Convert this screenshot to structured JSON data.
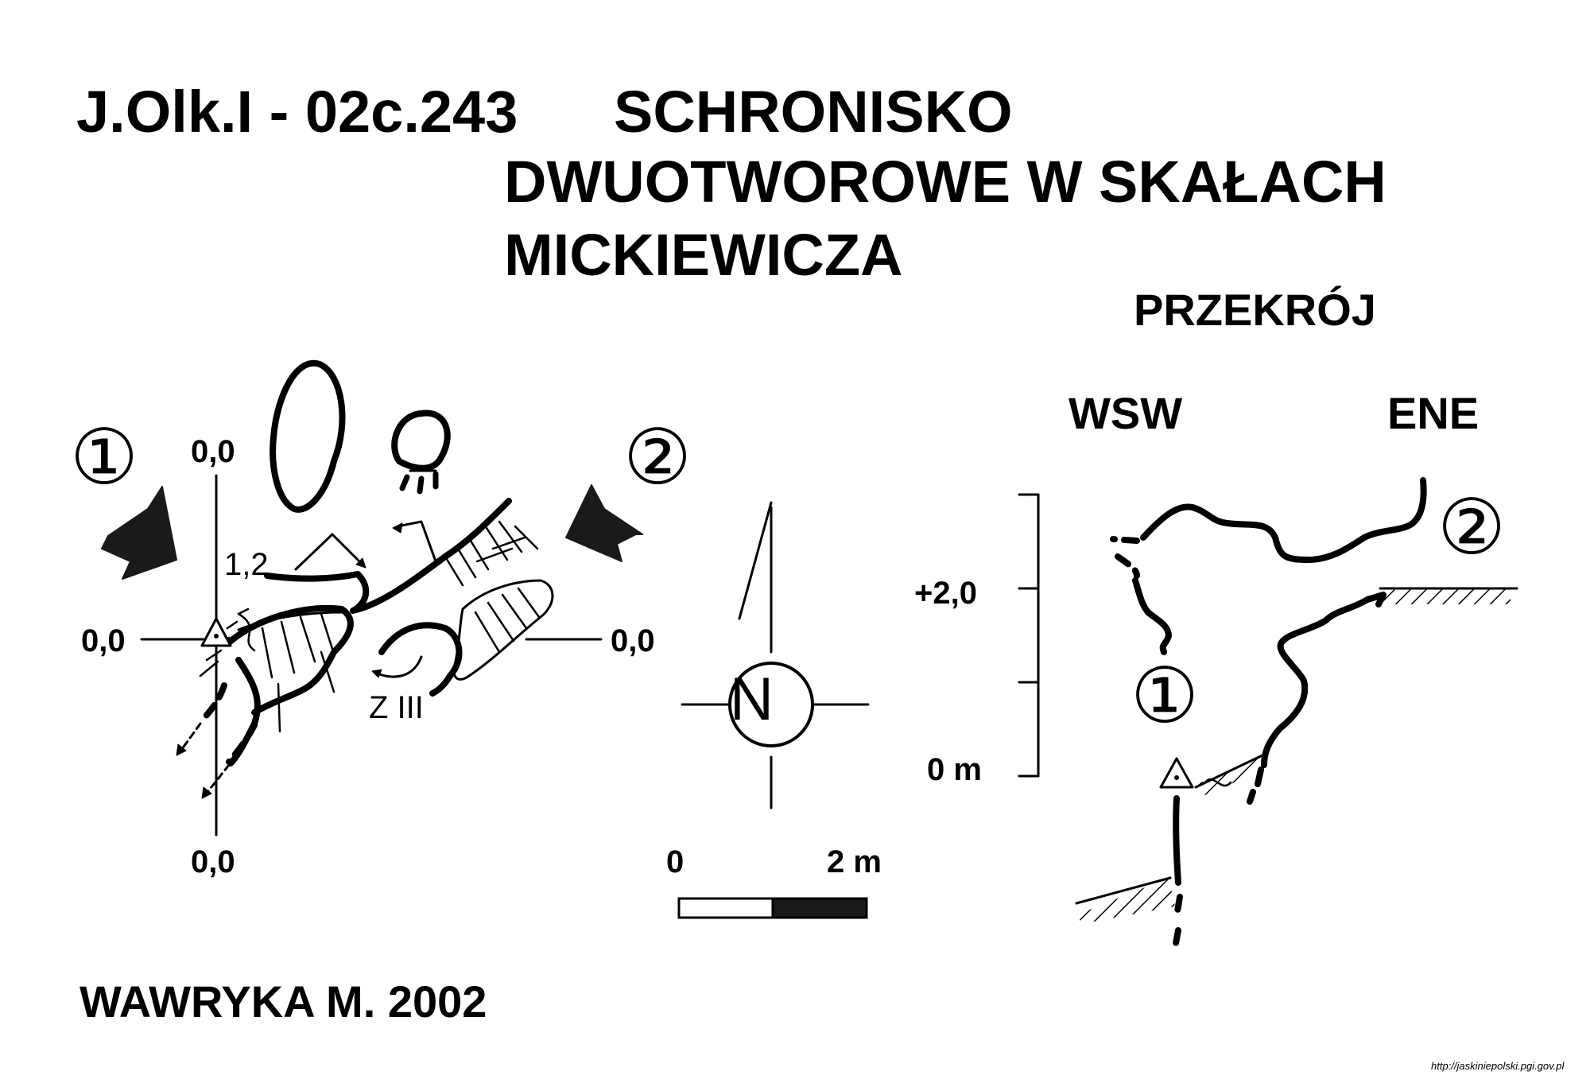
{
  "title": {
    "code": "J.Olk.I - 02c.243",
    "line1": "SCHRONISKO",
    "line2": "DWUOTWOROWE W SKAŁACH",
    "line3": "MICKIEWICZA"
  },
  "plan": {
    "entrance_markers": [
      "①",
      "②"
    ],
    "axis_labels": {
      "top": "0,0",
      "left": "0,0",
      "right": "0,0",
      "bottom": "0,0"
    },
    "height_label": "1,2",
    "zone_label": "Z III"
  },
  "north_arrow": {
    "label": "N"
  },
  "scale_bar": {
    "start_label": "0",
    "end_label": "2 m",
    "segment_colors": [
      "#ffffff",
      "#1a1a1a"
    ]
  },
  "section": {
    "title": "PRZEKRÓJ",
    "direction_left": "WSW",
    "direction_right": "ENE",
    "scale_labels": {
      "upper": "+2,0",
      "lower": "0 m"
    },
    "entrance_markers": [
      "①",
      "②"
    ]
  },
  "credit": "WAWRYKA M. 2002",
  "source_url": "http://jaskiniepolski.pgi.gov.pl"
}
